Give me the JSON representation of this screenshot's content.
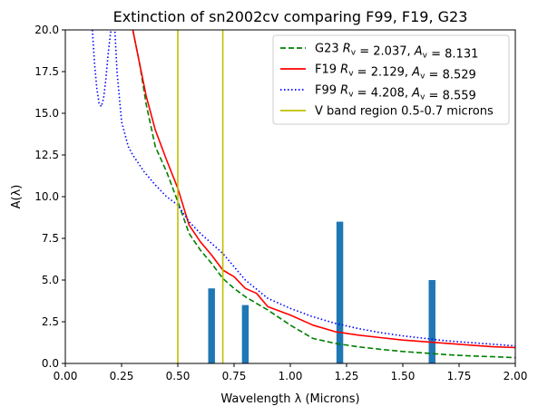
{
  "chart_data": {
    "type": "line",
    "title": "Extinction of sn2002cv comparing F99, F19, G23",
    "xlabel": "Wavelength λ (Microns)",
    "ylabel": "A(λ)",
    "xlim": [
      0.0,
      2.0
    ],
    "ylim": [
      0.0,
      20.0
    ],
    "x_ticks": [
      "0.00",
      "0.25",
      "0.50",
      "0.75",
      "1.00",
      "1.25",
      "1.50",
      "1.75",
      "2.00"
    ],
    "y_ticks": [
      "0.0",
      "2.5",
      "5.0",
      "7.5",
      "10.0",
      "12.5",
      "15.0",
      "17.5",
      "20.0"
    ],
    "grid": false,
    "legend_position": "top-right",
    "series": [
      {
        "name": "G23 R_v = 2.037, A_v = 8.131",
        "label_parts": {
          "model": "G23",
          "rv": "2.037",
          "av": "8.131"
        },
        "color": "#008000",
        "style": "dashed",
        "x": [
          0.3,
          0.33,
          0.36,
          0.4,
          0.45,
          0.5,
          0.55,
          0.6,
          0.65,
          0.7,
          0.75,
          0.8,
          0.85,
          0.9,
          1.0,
          1.1,
          1.2,
          1.3,
          1.4,
          1.5,
          1.6,
          1.7,
          1.8,
          1.9,
          2.0
        ],
        "y": [
          20.0,
          18.0,
          15.5,
          13.0,
          11.5,
          9.7,
          7.8,
          6.8,
          6.0,
          5.1,
          4.5,
          4.0,
          3.6,
          3.2,
          2.3,
          1.5,
          1.2,
          1.0,
          0.85,
          0.72,
          0.62,
          0.52,
          0.45,
          0.4,
          0.35
        ]
      },
      {
        "name": "F19 R_v = 2.129, A_v = 8.529",
        "label_parts": {
          "model": "F19",
          "rv": "2.129",
          "av": "8.529"
        },
        "color": "#ff0000",
        "style": "solid",
        "x": [
          0.3,
          0.33,
          0.36,
          0.4,
          0.45,
          0.5,
          0.55,
          0.6,
          0.65,
          0.7,
          0.75,
          0.8,
          0.85,
          0.9,
          1.0,
          1.1,
          1.2,
          1.3,
          1.4,
          1.5,
          1.6,
          1.7,
          1.8,
          1.9,
          2.0
        ],
        "y": [
          20.0,
          18.0,
          16.0,
          14.0,
          12.2,
          10.5,
          8.3,
          7.3,
          6.5,
          5.6,
          5.2,
          4.5,
          4.2,
          3.4,
          2.9,
          2.3,
          1.9,
          1.7,
          1.55,
          1.4,
          1.3,
          1.2,
          1.1,
          1.0,
          0.95
        ]
      },
      {
        "name": "F99 R_v = 4.208, A_v = 8.559",
        "label_parts": {
          "model": "F99",
          "rv": "4.208",
          "av": "8.559"
        },
        "color": "#0000ff",
        "style": "dotted",
        "x": [
          0.12,
          0.13,
          0.14,
          0.15,
          0.16,
          0.17,
          0.18,
          0.19,
          0.2,
          0.21,
          0.22,
          0.23,
          0.25,
          0.28,
          0.3,
          0.35,
          0.4,
          0.45,
          0.5,
          0.55,
          0.6,
          0.7,
          0.8,
          0.9,
          1.0,
          1.1,
          1.2,
          1.3,
          1.4,
          1.5,
          1.6,
          1.7,
          1.8,
          1.9,
          2.0
        ],
        "y": [
          20.0,
          18.0,
          16.5,
          15.6,
          15.4,
          15.9,
          17.0,
          18.5,
          19.7,
          20.5,
          20.0,
          17.5,
          14.5,
          13.0,
          12.5,
          11.5,
          10.7,
          10.0,
          9.5,
          8.5,
          7.8,
          6.6,
          5.0,
          3.9,
          3.3,
          2.8,
          2.4,
          2.1,
          1.85,
          1.65,
          1.5,
          1.35,
          1.25,
          1.15,
          1.05
        ]
      },
      {
        "name": "V band region 0.5-0.7 microns",
        "color": "#bfbf00",
        "style": "vline",
        "x_positions": [
          0.5,
          0.7
        ]
      }
    ],
    "bars": {
      "color": "#1f77b4",
      "width": 0.03,
      "x": [
        0.65,
        0.8,
        1.22,
        1.63
      ],
      "values": [
        4.5,
        3.5,
        8.5,
        5.0
      ]
    }
  }
}
